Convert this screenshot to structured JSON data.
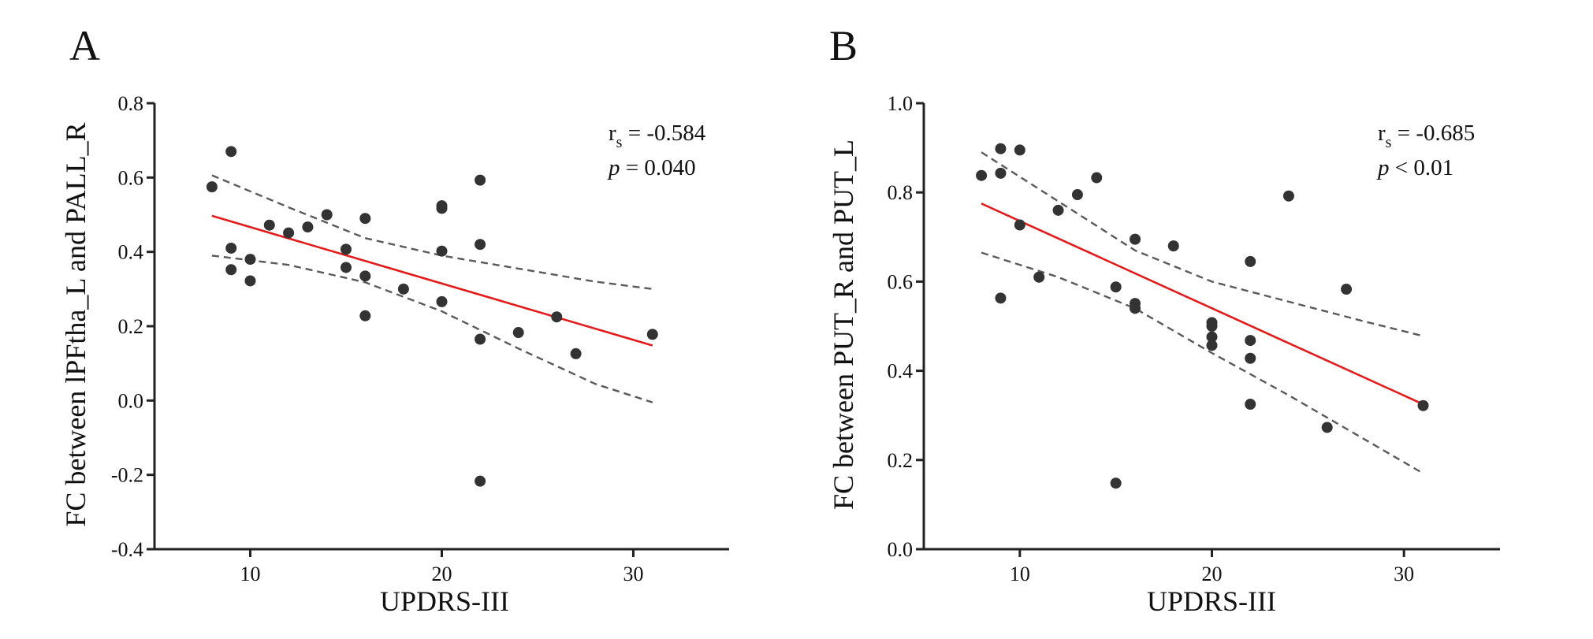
{
  "chart_data": [
    {
      "type": "scatter",
      "panel_label": "A",
      "xlabel": "UPDRS-III",
      "ylabel": "FC between lPFtha_L and PALL_R",
      "xlim": [
        5,
        35
      ],
      "ylim": [
        -0.4,
        0.8
      ],
      "xticks": [
        10,
        20,
        30
      ],
      "xtick_labels": [
        "10",
        "20",
        "30"
      ],
      "yticks": [
        -0.4,
        -0.2,
        0.0,
        0.2,
        0.4,
        0.6,
        0.8
      ],
      "ytick_labels": [
        "-0.4",
        "-0.2",
        "0.0",
        "0.2",
        "0.4",
        "0.6",
        "0.8"
      ],
      "stat": {
        "r_symbol": "r",
        "r_sub": "s",
        "r_text": " = -0.584",
        "p_symbol": "p",
        "p_text": " = 0.040"
      },
      "points": [
        [
          8,
          0.575
        ],
        [
          9,
          0.67
        ],
        [
          9,
          0.41
        ],
        [
          9,
          0.352
        ],
        [
          10,
          0.38
        ],
        [
          10,
          0.322
        ],
        [
          11,
          0.472
        ],
        [
          12,
          0.451
        ],
        [
          13,
          0.467
        ],
        [
          14,
          0.5
        ],
        [
          15,
          0.407
        ],
        [
          15,
          0.358
        ],
        [
          16,
          0.49
        ],
        [
          16,
          0.335
        ],
        [
          16,
          0.228
        ],
        [
          18,
          0.3
        ],
        [
          20,
          0.524
        ],
        [
          20,
          0.517
        ],
        [
          20,
          0.402
        ],
        [
          20,
          0.266
        ],
        [
          22,
          0.593
        ],
        [
          22,
          0.42
        ],
        [
          22,
          0.165
        ],
        [
          22,
          -0.217
        ],
        [
          24,
          0.183
        ],
        [
          26,
          0.225
        ],
        [
          27,
          0.126
        ],
        [
          31,
          0.178
        ]
      ],
      "fit": {
        "x": [
          8,
          31
        ],
        "y": [
          0.497,
          0.148
        ]
      },
      "ci_upper": {
        "x": [
          8,
          12,
          16,
          20,
          24,
          28,
          31
        ],
        "y": [
          0.606,
          0.52,
          0.437,
          0.39,
          0.355,
          0.32,
          0.3
        ]
      },
      "ci_lower": {
        "x": [
          8,
          12,
          16,
          20,
          24,
          28,
          31
        ],
        "y": [
          0.39,
          0.365,
          0.318,
          0.24,
          0.14,
          0.045,
          -0.005
        ]
      }
    },
    {
      "type": "scatter",
      "panel_label": "B",
      "xlabel": "UPDRS-III",
      "ylabel": "FC between PUT_R and PUT_L",
      "xlim": [
        5,
        35
      ],
      "ylim": [
        0.0,
        1.0
      ],
      "xticks": [
        10,
        20,
        30
      ],
      "xtick_labels": [
        "10",
        "20",
        "30"
      ],
      "yticks": [
        0.0,
        0.2,
        0.4,
        0.6,
        0.8,
        1.0
      ],
      "ytick_labels": [
        "0.0",
        "0.2",
        "0.4",
        "0.6",
        "0.8",
        "1.0"
      ],
      "stat": {
        "r_symbol": "r",
        "r_sub": "s",
        "r_text": " = -0.685",
        "p_symbol": "p",
        "p_text": " < 0.01"
      },
      "points": [
        [
          8,
          0.838
        ],
        [
          9,
          0.898
        ],
        [
          9,
          0.843
        ],
        [
          9,
          0.563
        ],
        [
          10,
          0.895
        ],
        [
          10,
          0.727
        ],
        [
          11,
          0.61
        ],
        [
          12,
          0.76
        ],
        [
          13,
          0.795
        ],
        [
          14,
          0.833
        ],
        [
          15,
          0.588
        ],
        [
          15,
          0.148
        ],
        [
          16,
          0.695
        ],
        [
          16,
          0.551
        ],
        [
          16,
          0.54
        ],
        [
          18,
          0.68
        ],
        [
          20,
          0.508
        ],
        [
          20,
          0.5
        ],
        [
          20,
          0.476
        ],
        [
          20,
          0.457
        ],
        [
          22,
          0.645
        ],
        [
          22,
          0.468
        ],
        [
          22,
          0.428
        ],
        [
          22,
          0.325
        ],
        [
          24,
          0.792
        ],
        [
          26,
          0.273
        ],
        [
          27,
          0.583
        ],
        [
          31,
          0.322
        ]
      ],
      "fit": {
        "x": [
          8,
          31
        ],
        "y": [
          0.775,
          0.325
        ]
      },
      "ci_upper": {
        "x": [
          8,
          12,
          16,
          20,
          24,
          28,
          31
        ],
        "y": [
          0.89,
          0.78,
          0.67,
          0.6,
          0.555,
          0.51,
          0.478
        ]
      },
      "ci_lower": {
        "x": [
          8,
          12,
          16,
          20,
          24,
          28,
          31
        ],
        "y": [
          0.665,
          0.61,
          0.54,
          0.44,
          0.345,
          0.245,
          0.17
        ]
      }
    }
  ]
}
